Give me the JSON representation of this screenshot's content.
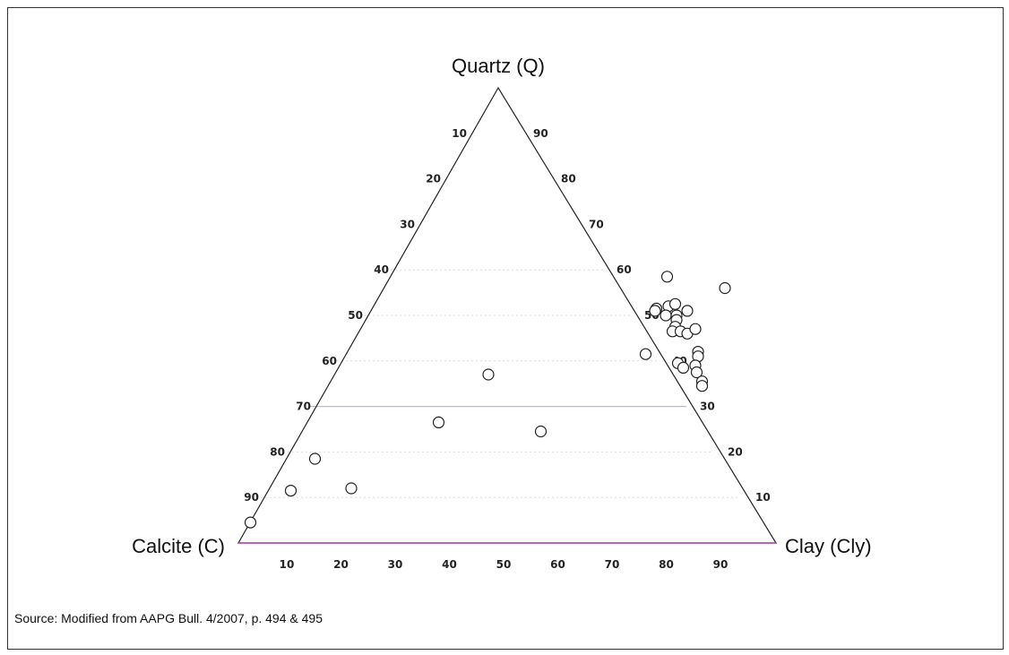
{
  "chart_data": {
    "type": "scatter",
    "subtype": "ternary",
    "vertices": {
      "top": "Quartz (Q)",
      "left": "Calcite (C)",
      "right": "Clay (Cly)"
    },
    "ticks": {
      "bottom": [
        "10",
        "20",
        "30",
        "40",
        "50",
        "60",
        "70",
        "80",
        "90"
      ],
      "left": [
        "90",
        "80",
        "70",
        "60",
        "50",
        "40",
        "30",
        "20",
        "10"
      ],
      "right": [
        "90",
        "80",
        "70",
        "60",
        "50",
        "40",
        "30",
        "20",
        "10"
      ]
    },
    "points_clay_quartz": [
      [
        0.0,
        4.5
      ],
      [
        4.0,
        11.5
      ],
      [
        5.0,
        18.5
      ],
      [
        15.0,
        12.0
      ],
      [
        24.0,
        26.5
      ],
      [
        28.0,
        37.0
      ],
      [
        44.0,
        24.5
      ],
      [
        52.0,
        51.5
      ],
      [
        52.0,
        51.0
      ],
      [
        55.0,
        41.5
      ],
      [
        50.5,
        58.5
      ],
      [
        54.0,
        52.0
      ],
      [
        54.5,
        50.0
      ],
      [
        55.0,
        52.5
      ],
      [
        56.5,
        50.0
      ],
      [
        57.0,
        49.0
      ],
      [
        57.5,
        47.5
      ],
      [
        58.0,
        51.0
      ],
      [
        57.5,
        46.5
      ],
      [
        59.0,
        46.5
      ],
      [
        60.5,
        46.0
      ],
      [
        61.5,
        47.0
      ],
      [
        62.5,
        56.0
      ],
      [
        62.0,
        39.5
      ],
      [
        63.5,
        38.5
      ],
      [
        64.5,
        42.0
      ],
      [
        65.0,
        41.0
      ],
      [
        65.5,
        39.0
      ],
      [
        66.5,
        37.5
      ],
      [
        68.5,
        35.5
      ],
      [
        69.0,
        34.5
      ]
    ]
  },
  "source": "Source: Modified from AAPG Bull. 4/2007, p. 494 & 495"
}
